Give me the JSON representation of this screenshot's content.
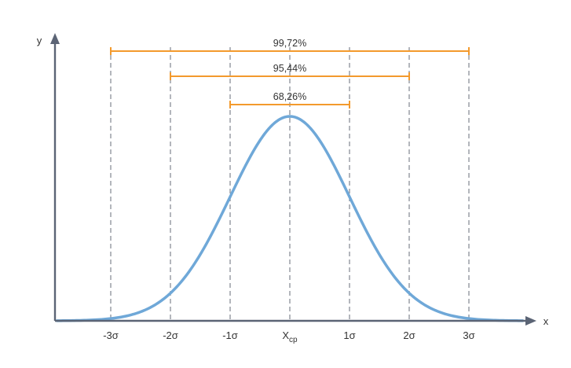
{
  "chart_data": {
    "type": "normal-distribution-diagram",
    "axes": {
      "x_label": "x",
      "y_label": "y"
    },
    "sigma_ticks": [
      {
        "value": -3,
        "label": "-3σ"
      },
      {
        "value": -2,
        "label": "-2σ"
      },
      {
        "value": -1,
        "label": "-1σ"
      },
      {
        "value": 0,
        "label": "X",
        "subscript": "cp"
      },
      {
        "value": 1,
        "label": "1σ"
      },
      {
        "value": 2,
        "label": "2σ"
      },
      {
        "value": 3,
        "label": "3σ"
      }
    ],
    "intervals": [
      {
        "from": -3,
        "to": 3,
        "label": "99,72%"
      },
      {
        "from": -2,
        "to": 2,
        "label": "95,44%"
      },
      {
        "from": -1,
        "to": 1,
        "label": "68,26%"
      }
    ],
    "x_range_sigma": [
      -3.9,
      3.9
    ],
    "colors": {
      "curve": "#6fa8d8",
      "bracket": "#f39a2d",
      "axis": "#5b6475",
      "guide": "#8a8f98"
    }
  }
}
